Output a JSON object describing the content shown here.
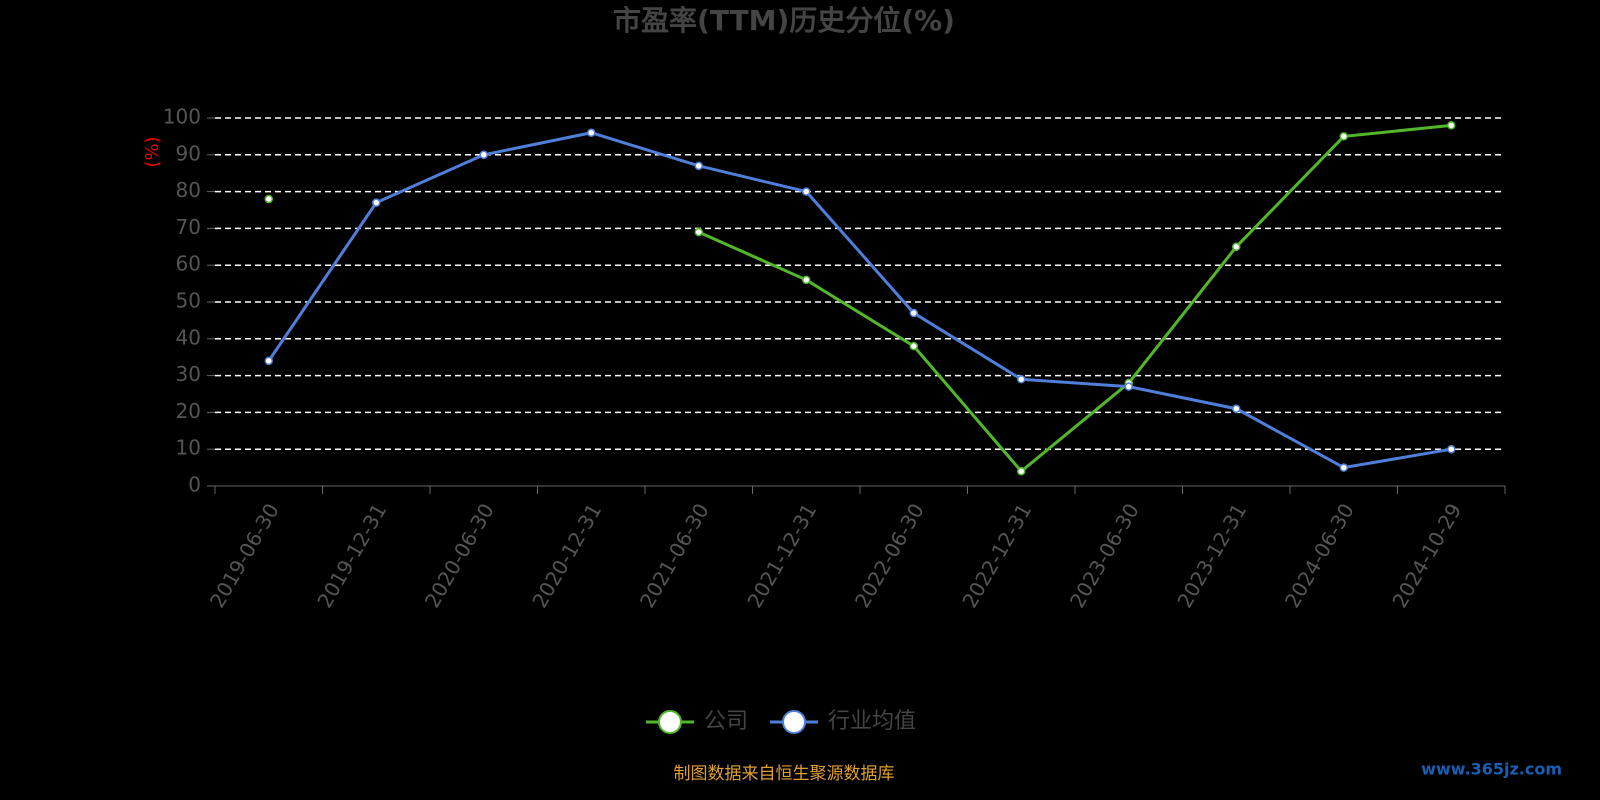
{
  "chart_data": {
    "type": "line",
    "title": "市盈率(TTM)历史分位(%)",
    "y_label": "(%)",
    "categories": [
      "2019-06-30",
      "2019-12-31",
      "2020-06-30",
      "2020-12-31",
      "2021-06-30",
      "2021-12-31",
      "2022-06-30",
      "2022-12-31",
      "2023-06-30",
      "2023-12-31",
      "2024-06-30",
      "2024-10-29"
    ],
    "series": [
      {
        "name": "公司",
        "color": "#52b72a",
        "values": [
          78,
          null,
          null,
          null,
          69,
          56,
          38,
          4,
          28,
          65,
          95,
          98
        ]
      },
      {
        "name": "行业均值",
        "color": "#4f7fd9",
        "values": [
          34,
          77,
          90,
          96,
          87,
          80,
          47,
          29,
          27,
          21,
          5,
          10
        ]
      }
    ],
    "ylim": [
      0,
      100
    ],
    "yticks": [
      0,
      10,
      20,
      30,
      40,
      50,
      60,
      70,
      80,
      90,
      100
    ],
    "grid": true,
    "source": "制图数据来自恒生聚源数据库",
    "watermark": "www.365jz.com"
  }
}
